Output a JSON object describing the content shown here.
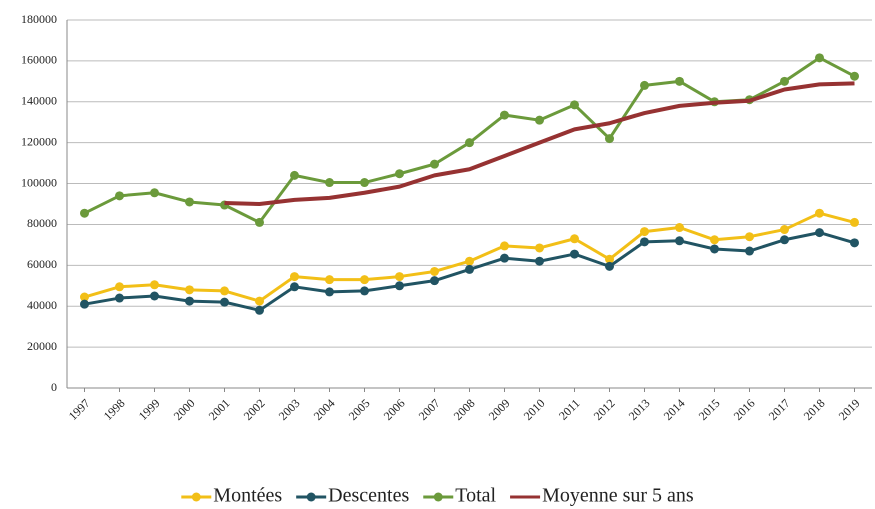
{
  "chart_data": {
    "type": "line",
    "categories": [
      "1997",
      "1998",
      "1999",
      "2000",
      "2001",
      "2002",
      "2003",
      "2004",
      "2005",
      "2006",
      "2007",
      "2008",
      "2009",
      "2010",
      "2011",
      "2012",
      "2013",
      "2014",
      "2015",
      "2016",
      "2017",
      "2018",
      "2019"
    ],
    "series": [
      {
        "name": "Montées",
        "color": "#f2bf17",
        "markers": true,
        "values": [
          44500,
          49500,
          50500,
          48000,
          47500,
          42500,
          54500,
          53000,
          53000,
          54500,
          57000,
          62000,
          69500,
          68500,
          73000,
          63000,
          76500,
          78500,
          72500,
          74000,
          77500,
          85500,
          81000
        ]
      },
      {
        "name": "Descentes",
        "color": "#215463",
        "markers": true,
        "values": [
          41000,
          44000,
          45000,
          42500,
          42000,
          38000,
          49500,
          47000,
          47500,
          50000,
          52500,
          58000,
          63500,
          62000,
          65500,
          59500,
          71500,
          72000,
          68000,
          67000,
          72500,
          76000,
          71000
        ]
      },
      {
        "name": "Total",
        "color": "#6b9a3b",
        "markers": true,
        "values": [
          85500,
          94000,
          95500,
          91000,
          89500,
          81000,
          104000,
          100500,
          100500,
          104800,
          109500,
          120000,
          133500,
          131000,
          138500,
          122000,
          148000,
          150000,
          140000,
          141000,
          150000,
          161500,
          152500
        ]
      },
      {
        "name": "Moyenne sur 5 ans",
        "color": "#963232",
        "markers": false,
        "values": [
          null,
          null,
          null,
          null,
          90500,
          90000,
          92000,
          93000,
          95500,
          98500,
          104000,
          107000,
          113500,
          120000,
          126500,
          129500,
          134500,
          138000,
          139500,
          140500,
          146000,
          148500,
          149000
        ]
      }
    ],
    "ylim": [
      0,
      180000
    ],
    "yticks": [
      0,
      20000,
      40000,
      60000,
      80000,
      100000,
      120000,
      140000,
      160000,
      180000
    ],
    "grid": true,
    "legend": "bottom"
  }
}
